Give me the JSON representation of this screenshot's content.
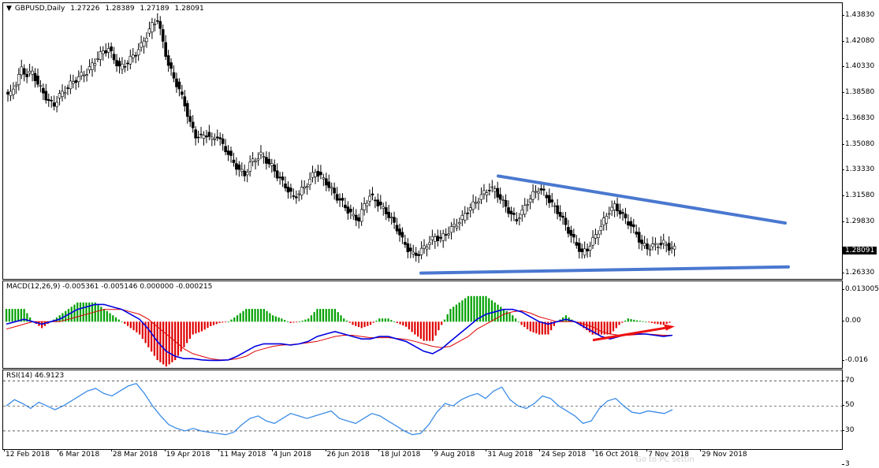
{
  "header": {
    "symbol": "GBPUSD,Daily",
    "open": "1.27226",
    "high": "1.28389",
    "low": "1.27189",
    "close": "1.28091"
  },
  "current_price_label": "1.28091",
  "macd_label": "MACD(12,26,9) -0.005361 -0.005146 0.000000 -0.000215",
  "rsi_label": "RSI(14) 46.9123",
  "watermark": "Go to PC settin",
  "colors": {
    "bull": "#00a000",
    "bear": "#e00000",
    "trendline": "#4a78d0",
    "macd_line": "#0000e0",
    "signal_line": "#e00000",
    "rsi": "#3c8ce6",
    "arrow": "#ee1111"
  },
  "chart_data": [
    {
      "type": "candlestick",
      "title": "GBPUSD,Daily",
      "ylim": [
        1.2634,
        1.4383
      ],
      "y_ticks": [
        "1.43830",
        "1.42080",
        "1.40330",
        "1.38580",
        "1.36830",
        "1.35080",
        "1.33330",
        "1.31580",
        "1.29830",
        "1.28091",
        "1.26330"
      ],
      "x_ticks": [
        "12 Feb 2018",
        "6 Mar 2018",
        "28 Mar 2018",
        "19 Apr 2018",
        "11 May 2018",
        "4 Jun 2018",
        "26 Jun 2018",
        "18 Jul 2018",
        "9 Aug 2018",
        "31 Aug 2018",
        "24 Sep 2018",
        "16 Oct 2018",
        "7 Nov 2018",
        "29 Nov 2018"
      ],
      "close_path": [
        1.385,
        1.393,
        1.402,
        1.398,
        1.4,
        1.392,
        1.386,
        1.38,
        1.378,
        1.384,
        1.388,
        1.392,
        1.395,
        1.398,
        1.4,
        1.405,
        1.41,
        1.414,
        1.416,
        1.409,
        1.403,
        1.405,
        1.409,
        1.413,
        1.418,
        1.425,
        1.432,
        1.436,
        1.42,
        1.405,
        1.396,
        1.388,
        1.378,
        1.365,
        1.357,
        1.356,
        1.358,
        1.354,
        1.357,
        1.35,
        1.345,
        1.338,
        1.334,
        1.33,
        1.338,
        1.341,
        1.344,
        1.34,
        1.336,
        1.33,
        1.325,
        1.32,
        1.315,
        1.318,
        1.322,
        1.327,
        1.333,
        1.329,
        1.325,
        1.32,
        1.315,
        1.311,
        1.306,
        1.302,
        1.3,
        1.31,
        1.316,
        1.313,
        1.309,
        1.305,
        1.3,
        1.294,
        1.286,
        1.28,
        1.276,
        1.277,
        1.281,
        1.285,
        1.288,
        1.287,
        1.29,
        1.294,
        1.297,
        1.301,
        1.306,
        1.31,
        1.314,
        1.318,
        1.321,
        1.32,
        1.314,
        1.309,
        1.303,
        1.3,
        1.305,
        1.312,
        1.317,
        1.321,
        1.318,
        1.313,
        1.308,
        1.303,
        1.296,
        1.289,
        1.283,
        1.277,
        1.28,
        1.286,
        1.292,
        1.299,
        1.306,
        1.309,
        1.305,
        1.3,
        1.296,
        1.29,
        1.283,
        1.281,
        1.282,
        1.283,
        1.284,
        1.281,
        1.28
      ],
      "trendlines": [
        {
          "name": "upper",
          "from": [
            "31 Aug 2018",
            1.3295
          ],
          "to": [
            "beyond 29 Nov 2018",
            1.2976
          ]
        },
        {
          "name": "lower",
          "from": [
            "9 Aug 2018",
            1.2636
          ],
          "to": [
            "beyond 29 Nov 2018",
            1.2678
          ]
        }
      ]
    },
    {
      "type": "macd",
      "title": "MACD(12,26,9) -0.005361 -0.005146 0.000000 -0.000215",
      "ylim": [
        -0.0175,
        0.0145
      ],
      "y_ticks": [
        "0.013005",
        "0.00",
        "-0.016"
      ],
      "macd": [
        -0.001,
        0.0,
        0.001,
        0.0,
        -0.001,
        0.0,
        0.001,
        0.003,
        0.005,
        0.006,
        0.007,
        0.007,
        0.006,
        0.005,
        0.003,
        0.001,
        -0.003,
        -0.008,
        -0.012,
        -0.014,
        -0.015,
        -0.015,
        -0.0155,
        -0.0157,
        -0.0157,
        -0.0155,
        -0.014,
        -0.012,
        -0.01,
        -0.009,
        -0.009,
        -0.009,
        -0.0095,
        -0.009,
        -0.008,
        -0.006,
        -0.005,
        -0.004,
        -0.005,
        -0.006,
        -0.007,
        -0.007,
        -0.006,
        -0.006,
        -0.007,
        -0.008,
        -0.01,
        -0.012,
        -0.013,
        -0.011,
        -0.008,
        -0.005,
        -0.002,
        0.001,
        0.003,
        0.004,
        0.005,
        0.005,
        0.004,
        0.002,
        0.0,
        -0.001,
        0.0,
        0.001,
        0.0,
        -0.002,
        -0.004,
        -0.006,
        -0.007,
        -0.006,
        -0.005,
        -0.005,
        -0.005,
        -0.0055,
        -0.006,
        -0.0055
      ],
      "signal": [
        -0.003,
        -0.002,
        -0.001,
        0.0,
        0.0,
        0.0,
        0.0,
        0.001,
        0.002,
        0.003,
        0.004,
        0.005,
        0.005,
        0.005,
        0.004,
        0.003,
        0.001,
        -0.002,
        -0.005,
        -0.008,
        -0.011,
        -0.013,
        -0.014,
        -0.015,
        -0.0155,
        -0.0155,
        -0.015,
        -0.014,
        -0.012,
        -0.011,
        -0.01,
        -0.0095,
        -0.0093,
        -0.009,
        -0.0085,
        -0.008,
        -0.007,
        -0.006,
        -0.0055,
        -0.0055,
        -0.006,
        -0.0065,
        -0.0065,
        -0.0065,
        -0.0068,
        -0.0072,
        -0.008,
        -0.009,
        -0.01,
        -0.0105,
        -0.01,
        -0.008,
        -0.006,
        -0.003,
        -0.001,
        0.001,
        0.003,
        0.004,
        0.0045,
        0.0035,
        0.002,
        0.001,
        0.0,
        0.0,
        0.0,
        -0.001,
        -0.002,
        -0.004,
        -0.005,
        -0.0055,
        -0.0055,
        -0.0052,
        -0.005,
        -0.0052,
        -0.0055,
        -0.0055
      ]
    },
    {
      "type": "line",
      "title": "RSI(14) 46.9123",
      "ylim": [
        18,
        76
      ],
      "y_ticks": [
        "70",
        "50",
        "30",
        "3"
      ],
      "levels": [
        70,
        50,
        30
      ],
      "values": [
        50,
        55,
        52,
        48,
        53,
        50,
        47,
        50,
        54,
        58,
        62,
        64,
        60,
        58,
        62,
        66,
        68,
        60,
        50,
        42,
        35,
        32,
        30,
        32,
        30,
        29,
        28,
        27,
        29,
        35,
        40,
        42,
        38,
        36,
        40,
        44,
        42,
        40,
        42,
        44,
        46,
        40,
        38,
        36,
        40,
        44,
        42,
        38,
        34,
        30,
        27,
        28,
        35,
        45,
        52,
        50,
        55,
        58,
        60,
        56,
        62,
        65,
        55,
        50,
        48,
        52,
        58,
        56,
        50,
        46,
        42,
        36,
        38,
        48,
        54,
        56,
        50,
        45,
        44,
        46,
        45,
        44,
        47
      ]
    }
  ]
}
